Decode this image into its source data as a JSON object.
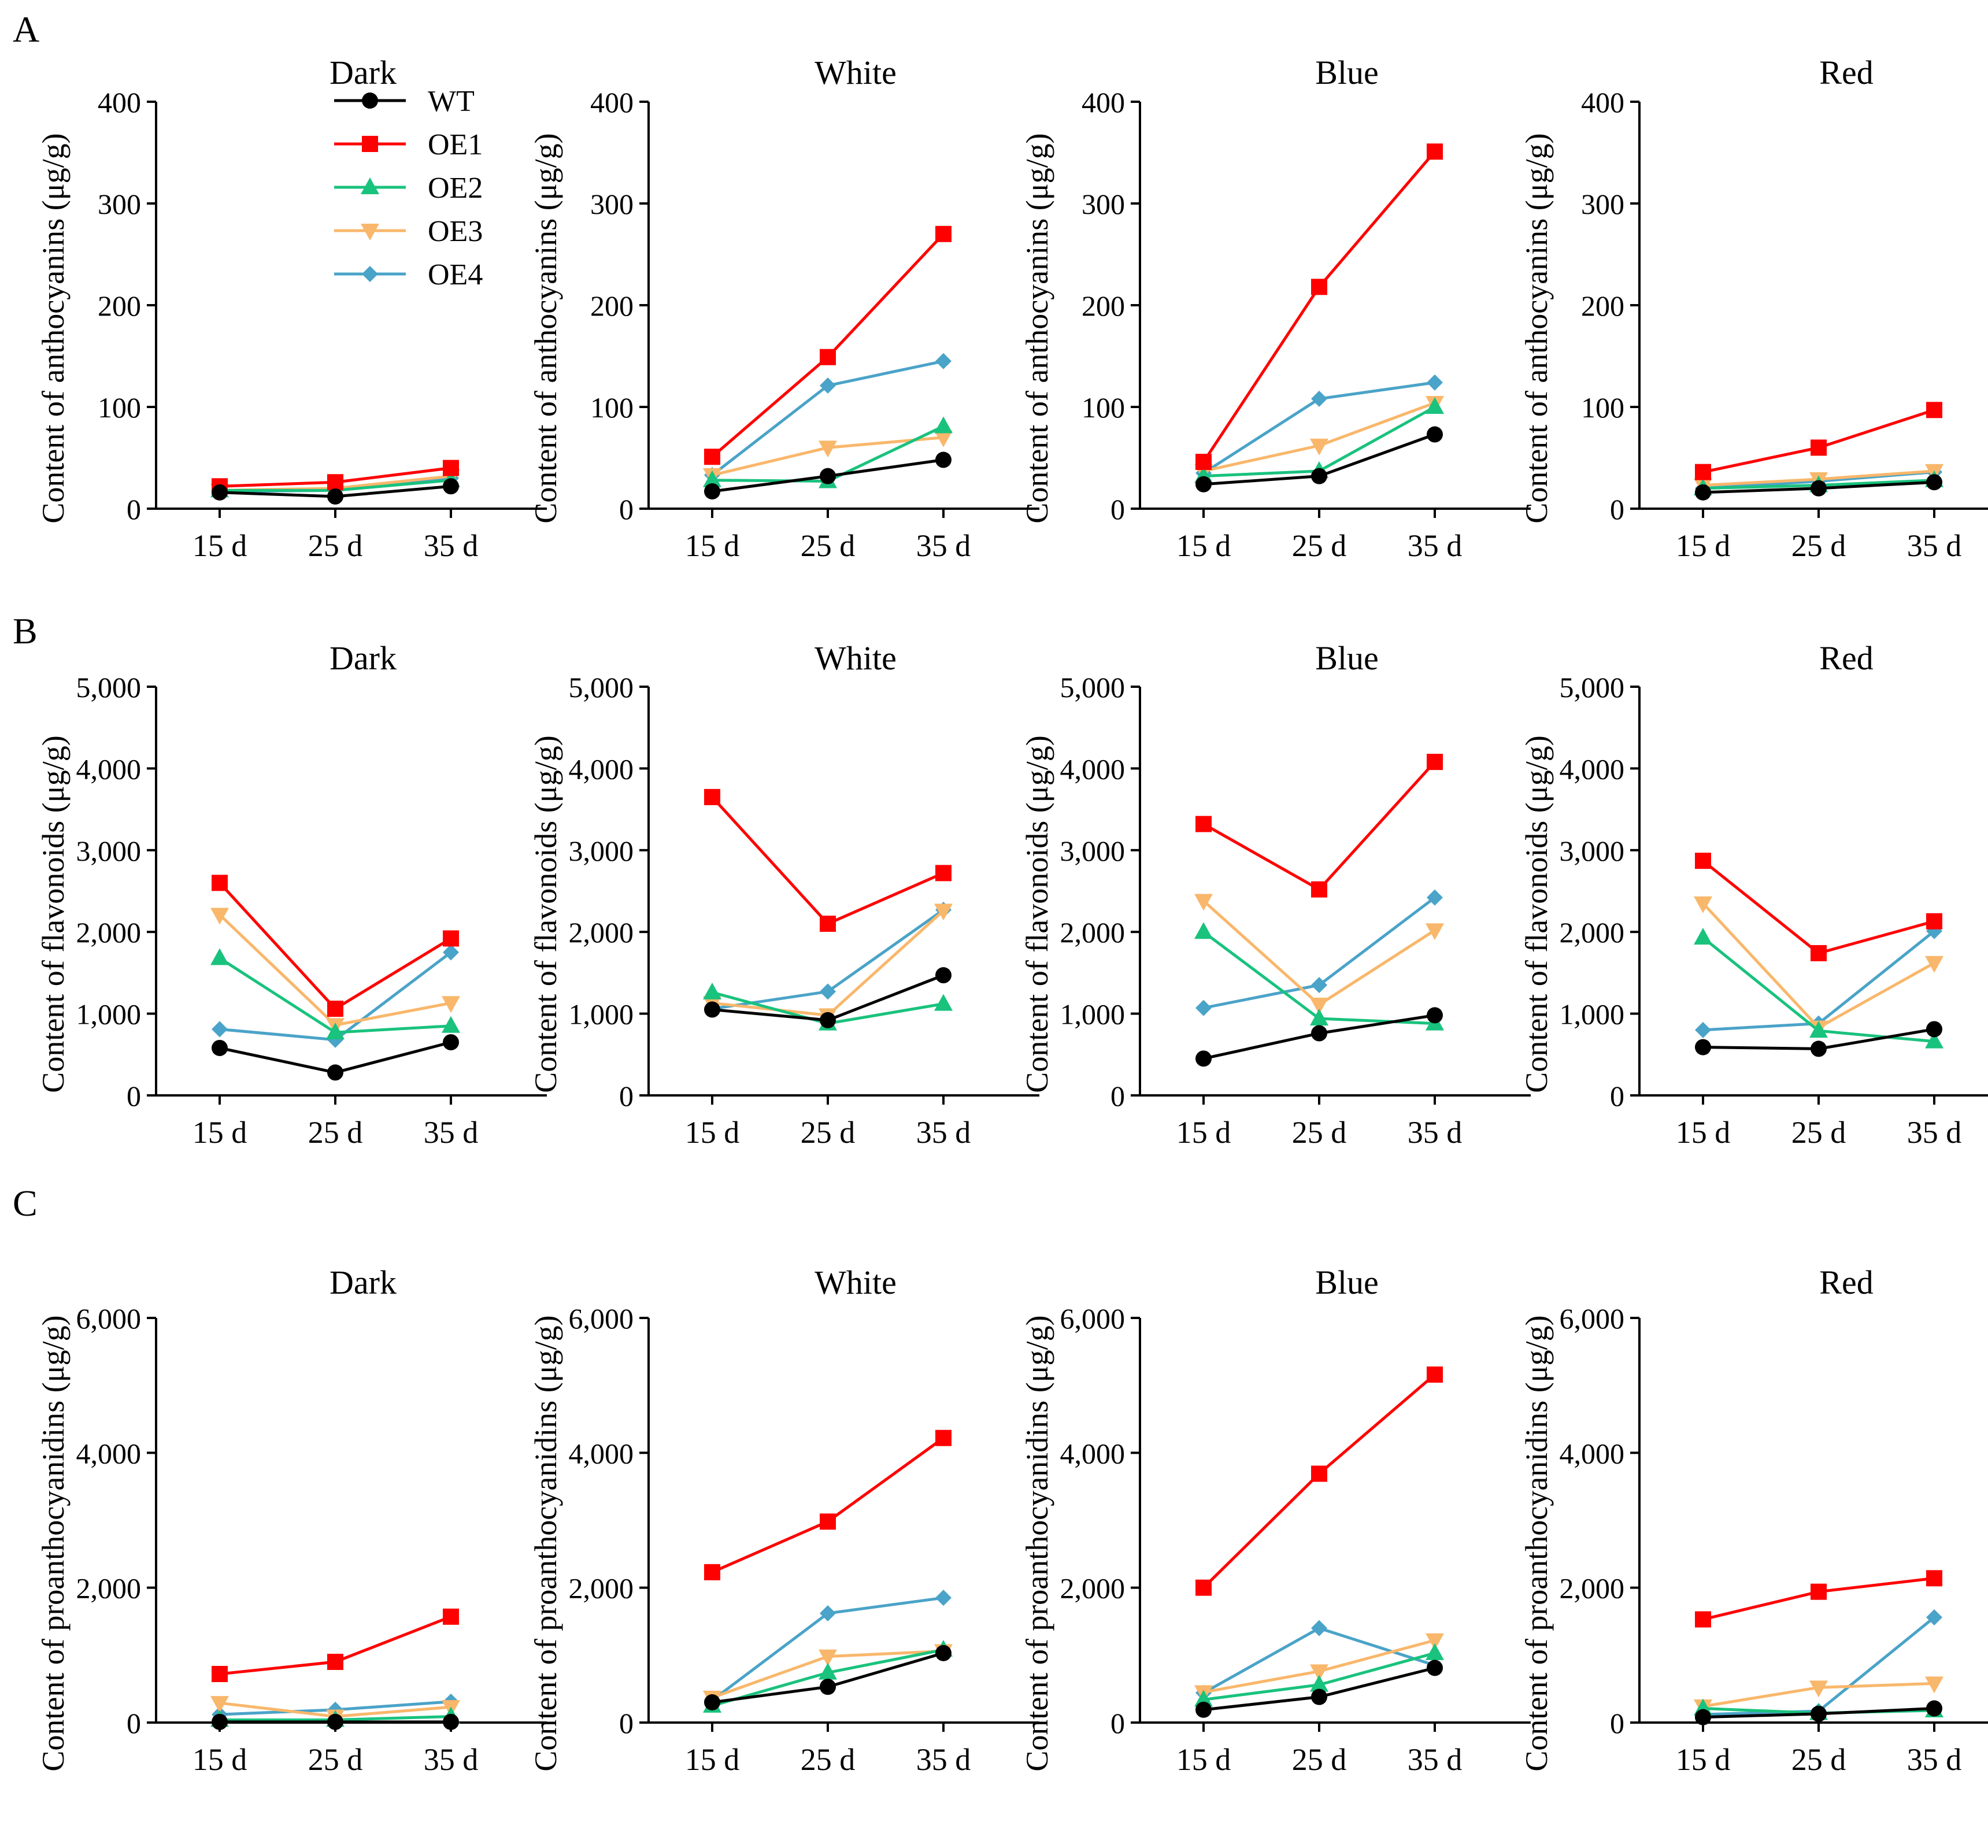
{
  "figure": {
    "row_labels": [
      "A",
      "B",
      "C"
    ],
    "legend": [
      {
        "name": "WT",
        "color": "#000000",
        "marker": "circle"
      },
      {
        "name": "OE1",
        "color": "#ff0000",
        "marker": "square"
      },
      {
        "name": "OE2",
        "color": "#19c27d",
        "marker": "triangle-up"
      },
      {
        "name": "OE3",
        "color": "#f9b76b",
        "marker": "triangle-down"
      },
      {
        "name": "OE4",
        "color": "#4aa3c8",
        "marker": "diamond"
      }
    ]
  },
  "chart_data": [
    {
      "type": "line",
      "row": "A",
      "title": "Dark",
      "categories": [
        "15 d",
        "25 d",
        "35 d"
      ],
      "ylabel": "Content of anthocyanins (μg/g)",
      "ylim": [
        0,
        400
      ],
      "yticks": [
        "0",
        "100",
        "200",
        "300",
        "400"
      ],
      "series": [
        {
          "name": "WT",
          "values": [
            16,
            12,
            22
          ]
        },
        {
          "name": "OE1",
          "values": [
            22,
            26,
            40
          ]
        },
        {
          "name": "OE2",
          "values": [
            18,
            18,
            28
          ]
        },
        {
          "name": "OE3",
          "values": [
            18,
            20,
            32
          ]
        },
        {
          "name": "OE4",
          "values": [
            17,
            18,
            30
          ]
        }
      ]
    },
    {
      "type": "line",
      "row": "A",
      "title": "White",
      "categories": [
        "15 d",
        "25 d",
        "35 d"
      ],
      "ylabel": "Content of anthocyanins (μg/g)",
      "ylim": [
        0,
        400
      ],
      "yticks": [
        "0",
        "100",
        "200",
        "300",
        "400"
      ],
      "series": [
        {
          "name": "WT",
          "values": [
            17,
            32,
            48
          ]
        },
        {
          "name": "OE1",
          "values": [
            51,
            149,
            270
          ]
        },
        {
          "name": "OE2",
          "values": [
            28,
            27,
            81
          ]
        },
        {
          "name": "OE3",
          "values": [
            33,
            60,
            70
          ]
        },
        {
          "name": "OE4",
          "values": [
            33,
            121,
            145
          ]
        }
      ]
    },
    {
      "type": "line",
      "row": "A",
      "title": "Blue",
      "categories": [
        "15 d",
        "25 d",
        "35 d"
      ],
      "ylabel": "Content of anthocyanins (μg/g)",
      "ylim": [
        0,
        400
      ],
      "yticks": [
        "0",
        "100",
        "200",
        "300",
        "400"
      ],
      "series": [
        {
          "name": "WT",
          "values": [
            24,
            32,
            73
          ]
        },
        {
          "name": "OE1",
          "values": [
            46,
            218,
            351
          ]
        },
        {
          "name": "OE2",
          "values": [
            32,
            37,
            100
          ]
        },
        {
          "name": "OE3",
          "values": [
            37,
            62,
            104
          ]
        },
        {
          "name": "OE4",
          "values": [
            35,
            108,
            124
          ]
        }
      ]
    },
    {
      "type": "line",
      "row": "A",
      "title": "Red",
      "categories": [
        "15 d",
        "25 d",
        "35 d"
      ],
      "ylabel": "Content of anthocyanins (μg/g)",
      "ylim": [
        0,
        400
      ],
      "yticks": [
        "0",
        "100",
        "200",
        "300",
        "400"
      ],
      "series": [
        {
          "name": "WT",
          "values": [
            16,
            20,
            26
          ]
        },
        {
          "name": "OE1",
          "values": [
            36,
            60,
            97
          ]
        },
        {
          "name": "OE2",
          "values": [
            20,
            23,
            28
          ]
        },
        {
          "name": "OE3",
          "values": [
            23,
            29,
            37
          ]
        },
        {
          "name": "OE4",
          "values": [
            20,
            27,
            36
          ]
        }
      ]
    },
    {
      "type": "line",
      "row": "B",
      "title": "Dark",
      "categories": [
        "15 d",
        "25 d",
        "35 d"
      ],
      "ylabel": "Content of flavonoids (μg/g)",
      "ylim": [
        0,
        5000
      ],
      "yticks": [
        "0",
        "1,000",
        "2,000",
        "3,000",
        "4,000",
        "5,000"
      ],
      "series": [
        {
          "name": "WT",
          "values": [
            580,
            280,
            650
          ]
        },
        {
          "name": "OE1",
          "values": [
            2600,
            1060,
            1920
          ]
        },
        {
          "name": "OE2",
          "values": [
            1680,
            770,
            850
          ]
        },
        {
          "name": "OE3",
          "values": [
            2210,
            860,
            1130
          ]
        },
        {
          "name": "OE4",
          "values": [
            810,
            680,
            1750
          ]
        }
      ]
    },
    {
      "type": "line",
      "row": "B",
      "title": "White",
      "categories": [
        "15 d",
        "25 d",
        "35 d"
      ],
      "ylabel": "Content of flavonoids (μg/g)",
      "ylim": [
        0,
        5000
      ],
      "yticks": [
        "0",
        "1,000",
        "2,000",
        "3,000",
        "4,000",
        "5,000"
      ],
      "series": [
        {
          "name": "WT",
          "values": [
            1050,
            920,
            1470
          ]
        },
        {
          "name": "OE1",
          "values": [
            3650,
            2100,
            2720
          ]
        },
        {
          "name": "OE2",
          "values": [
            1260,
            880,
            1120
          ]
        },
        {
          "name": "OE3",
          "values": [
            1130,
            980,
            2260
          ]
        },
        {
          "name": "OE4",
          "values": [
            1060,
            1270,
            2270
          ]
        }
      ]
    },
    {
      "type": "line",
      "row": "B",
      "title": "Blue",
      "categories": [
        "15 d",
        "25 d",
        "35 d"
      ],
      "ylabel": "Content of flavonoids (μg/g)",
      "ylim": [
        0,
        5000
      ],
      "yticks": [
        "0",
        "1,000",
        "2,000",
        "3,000",
        "4,000",
        "5,000"
      ],
      "series": [
        {
          "name": "WT",
          "values": [
            450,
            760,
            980
          ]
        },
        {
          "name": "OE1",
          "values": [
            3320,
            2520,
            4080
          ]
        },
        {
          "name": "OE2",
          "values": [
            2000,
            940,
            880
          ]
        },
        {
          "name": "OE3",
          "values": [
            2380,
            1110,
            2020
          ]
        },
        {
          "name": "OE4",
          "values": [
            1070,
            1350,
            2420
          ]
        }
      ]
    },
    {
      "type": "line",
      "row": "B",
      "title": "Red",
      "categories": [
        "15 d",
        "25 d",
        "35 d"
      ],
      "ylabel": "Content of flavonoids (μg/g)",
      "ylim": [
        0,
        5000
      ],
      "yticks": [
        "0",
        "1,000",
        "2,000",
        "3,000",
        "4,000",
        "5,000"
      ],
      "series": [
        {
          "name": "WT",
          "values": [
            590,
            570,
            810
          ]
        },
        {
          "name": "OE1",
          "values": [
            2870,
            1740,
            2130
          ]
        },
        {
          "name": "OE2",
          "values": [
            1930,
            790,
            660
          ]
        },
        {
          "name": "OE3",
          "values": [
            2350,
            830,
            1620
          ]
        },
        {
          "name": "OE4",
          "values": [
            800,
            880,
            2010
          ]
        }
      ]
    },
    {
      "type": "line",
      "row": "C",
      "title": "Dark",
      "categories": [
        "15 d",
        "25 d",
        "35 d"
      ],
      "ylabel": "Content of proanthocyanidins (μg/g)",
      "ylim": [
        0,
        6000
      ],
      "yticks": [
        "0",
        "2,000",
        "4,000",
        "6,000"
      ],
      "series": [
        {
          "name": "WT",
          "values": [
            10,
            10,
            10
          ]
        },
        {
          "name": "OE1",
          "values": [
            720,
            900,
            1570
          ]
        },
        {
          "name": "OE2",
          "values": [
            40,
            40,
            90
          ]
        },
        {
          "name": "OE3",
          "values": [
            290,
            90,
            230
          ]
        },
        {
          "name": "OE4",
          "values": [
            120,
            190,
            310
          ]
        }
      ]
    },
    {
      "type": "line",
      "row": "C",
      "title": "White",
      "categories": [
        "15 d",
        "25 d",
        "35 d"
      ],
      "ylabel": "Content of proanthocyanidins (μg/g)",
      "ylim": [
        0,
        6000
      ],
      "yticks": [
        "0",
        "2,000",
        "4,000",
        "6,000"
      ],
      "series": [
        {
          "name": "WT",
          "values": [
            300,
            530,
            1030
          ]
        },
        {
          "name": "OE1",
          "values": [
            2230,
            2980,
            4220
          ]
        },
        {
          "name": "OE2",
          "values": [
            250,
            740,
            1080
          ]
        },
        {
          "name": "OE3",
          "values": [
            370,
            980,
            1060
          ]
        },
        {
          "name": "OE4",
          "values": [
            330,
            1620,
            1850
          ]
        }
      ]
    },
    {
      "type": "line",
      "row": "C",
      "title": "Blue",
      "categories": [
        "15 d",
        "25 d",
        "35 d"
      ],
      "ylabel": "Content of proanthocyanidins (μg/g)",
      "ylim": [
        0,
        6000
      ],
      "yticks": [
        "0",
        "2,000",
        "4,000",
        "6,000"
      ],
      "series": [
        {
          "name": "WT",
          "values": [
            190,
            380,
            810
          ]
        },
        {
          "name": "OE1",
          "values": [
            2000,
            3690,
            5160
          ]
        },
        {
          "name": "OE2",
          "values": [
            340,
            560,
            1030
          ]
        },
        {
          "name": "OE3",
          "values": [
            450,
            760,
            1220
          ]
        },
        {
          "name": "OE4",
          "values": [
            440,
            1400,
            850
          ]
        }
      ]
    },
    {
      "type": "line",
      "row": "C",
      "title": "Red",
      "categories": [
        "15 d",
        "25 d",
        "35 d"
      ],
      "ylabel": "Content of proanthocyanidins (μg/g)",
      "ylim": [
        0,
        6000
      ],
      "yticks": [
        "0",
        "2,000",
        "4,000",
        "6,000"
      ],
      "series": [
        {
          "name": "WT",
          "values": [
            80,
            130,
            210
          ]
        },
        {
          "name": "OE1",
          "values": [
            1530,
            1940,
            2140
          ]
        },
        {
          "name": "OE2",
          "values": [
            210,
            140,
            180
          ]
        },
        {
          "name": "OE3",
          "values": [
            240,
            520,
            580
          ]
        },
        {
          "name": "OE4",
          "values": [
            120,
            170,
            1560
          ]
        }
      ]
    }
  ]
}
